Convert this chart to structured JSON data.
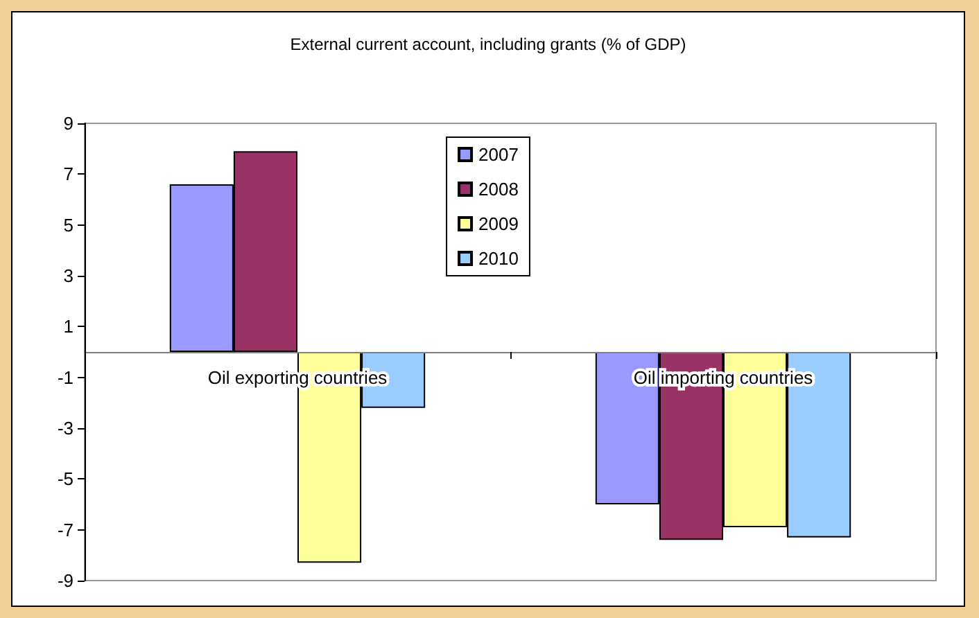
{
  "chart_data": {
    "type": "bar",
    "title": "External current account, including grants (% of GDP)",
    "categories": [
      "Oil exporting countries",
      "Oil importing countries"
    ],
    "series": [
      {
        "name": "2007",
        "color": "#9999ff",
        "values": [
          6.6,
          -6.0
        ]
      },
      {
        "name": "2008",
        "color": "#993366",
        "values": [
          7.9,
          -7.4
        ]
      },
      {
        "name": "2009",
        "color": "#ffff99",
        "values": [
          -8.3,
          -6.9
        ]
      },
      {
        "name": "2010",
        "color": "#99ccff",
        "values": [
          -2.2,
          -7.3
        ]
      }
    ],
    "ylim": [
      -9,
      9
    ],
    "yticks": [
      -9,
      -7,
      -5,
      -3,
      -1,
      1,
      3,
      5,
      7,
      9
    ],
    "grid": false,
    "legend": "top"
  }
}
